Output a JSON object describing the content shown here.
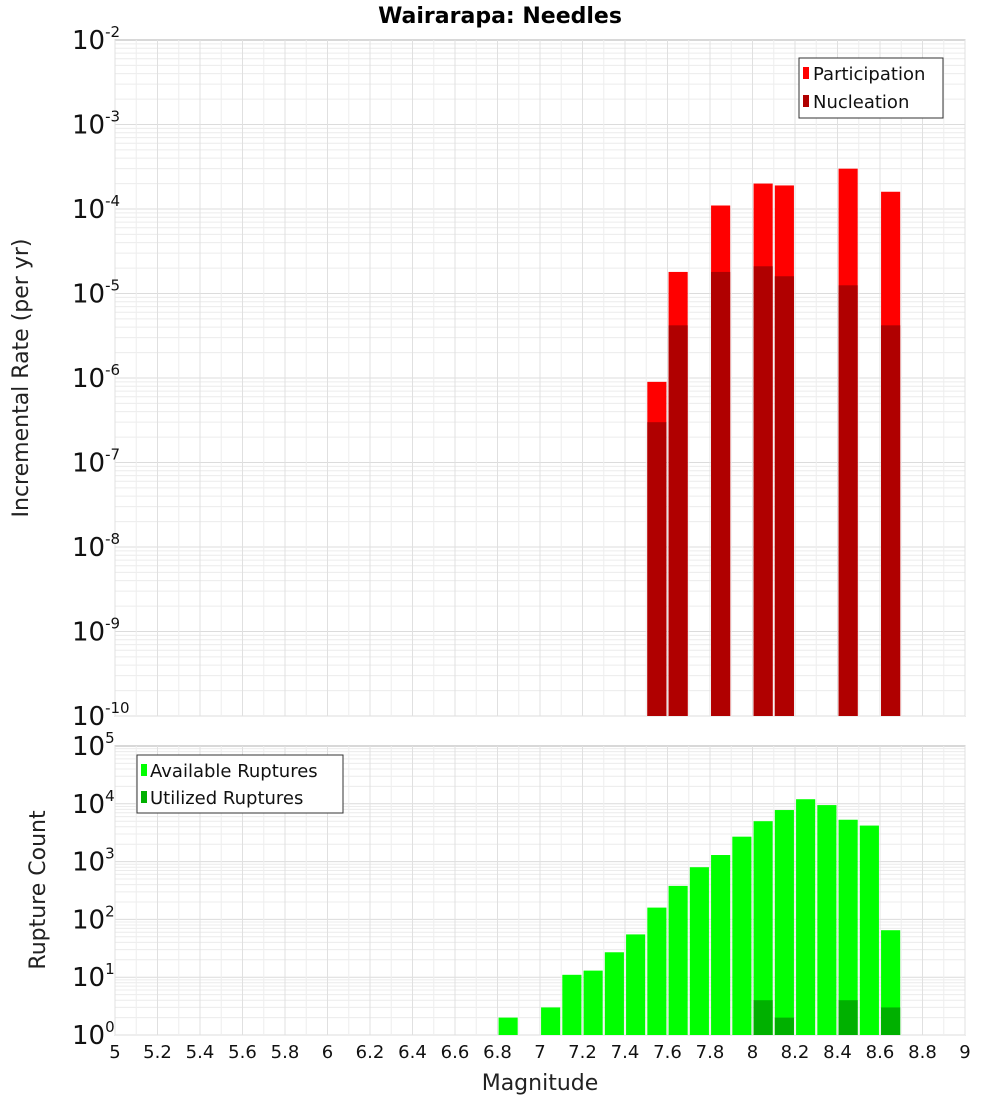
{
  "chart_data": {
    "title": "Wairarapa: Needles",
    "xlabel": "Magnitude",
    "xlim": [
      5,
      9
    ],
    "x_ticks": [
      "5",
      "5.2",
      "5.4",
      "5.6",
      "5.8",
      "6",
      "6.2",
      "6.4",
      "6.6",
      "6.8",
      "7",
      "7.2",
      "7.4",
      "7.6",
      "7.8",
      "8",
      "8.2",
      "8.4",
      "8.6",
      "8.8",
      "9"
    ],
    "bar_width": 0.09,
    "panels": [
      {
        "type": "bar",
        "yscale": "log",
        "ylabel": "Incremental Rate (per yr)",
        "ylim_exp": [
          -10,
          -2
        ],
        "legend": [
          {
            "label": "Participation",
            "color": "#ff0000"
          },
          {
            "label": "Nucleation",
            "color": "#b00000"
          }
        ],
        "series": [
          {
            "name": "Participation",
            "color": "#ff0000",
            "x": [
              7.55,
              7.65,
              7.85,
              8.05,
              8.15,
              8.45,
              8.65
            ],
            "values": [
              9e-07,
              1.8e-05,
              0.00011,
              0.0002,
              0.00019,
              0.0003,
              0.00016
            ]
          },
          {
            "name": "Nucleation",
            "color": "#b00000",
            "x": [
              7.55,
              7.65,
              7.85,
              8.05,
              8.15,
              8.45,
              8.65
            ],
            "values": [
              3e-07,
              4.2e-06,
              1.8e-05,
              2.1e-05,
              1.6e-05,
              1.25e-05,
              4.2e-06
            ]
          }
        ]
      },
      {
        "type": "bar",
        "yscale": "log",
        "ylabel": "Rupture Count",
        "ylim_exp": [
          0,
          5
        ],
        "legend": [
          {
            "label": "Available Ruptures",
            "color": "#00ff00"
          },
          {
            "label": "Utilized Ruptures",
            "color": "#00b000"
          }
        ],
        "series": [
          {
            "name": "Available Ruptures",
            "color": "#00ff00",
            "x": [
              6.85,
              7.05,
              7.15,
              7.25,
              7.35,
              7.45,
              7.55,
              7.65,
              7.75,
              7.85,
              7.95,
              8.05,
              8.15,
              8.25,
              8.35,
              8.45,
              8.55,
              8.65
            ],
            "values": [
              2,
              3,
              11,
              13,
              27,
              55,
              160,
              380,
              800,
              1300,
              2700,
              5000,
              7800,
              12000,
              9500,
              5300,
              4200,
              65
            ]
          },
          {
            "name": "Utilized Ruptures",
            "color": "#00b000",
            "x": [
              7.55,
              7.65,
              7.85,
              8.05,
              8.15,
              8.45,
              8.65
            ],
            "values": [
              1,
              1,
              1,
              4,
              2,
              4,
              3
            ]
          }
        ]
      }
    ]
  }
}
